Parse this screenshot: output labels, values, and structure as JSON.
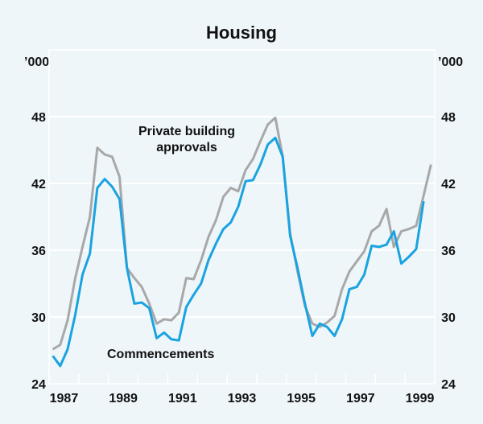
{
  "chart_data": {
    "type": "line",
    "title": "Housing",
    "ylabel_left": "’000",
    "ylabel_right": "’000",
    "ylim": [
      24,
      54
    ],
    "yticks": [
      24,
      30,
      36,
      42,
      48
    ],
    "xlim": [
      1987,
      2000
    ],
    "xticks": [
      "1987",
      "1989",
      "1991",
      "1993",
      "1995",
      "1997",
      "1999"
    ],
    "x_frequency": "quarterly",
    "x_start": "1987 Q1",
    "grid": true,
    "colors": {
      "background": "#eef6fa",
      "grid": "#ffffff",
      "approvals": "#a8a8a8",
      "commencements": "#1aa3e0"
    },
    "series": [
      {
        "name": "Private building approvals",
        "values": [
          27.1,
          27.5,
          29.7,
          33.4,
          36.3,
          39.0,
          45.2,
          44.6,
          44.4,
          42.6,
          34.4,
          33.5,
          32.7,
          31.2,
          29.4,
          29.8,
          29.7,
          30.4,
          33.5,
          33.4,
          35.1,
          37.2,
          38.7,
          40.8,
          41.6,
          41.3,
          43.2,
          44.2,
          45.8,
          47.3,
          47.9,
          44.4,
          37.5,
          34.1,
          31.0,
          29.4,
          29.1,
          29.5,
          30.1,
          32.5,
          34.1,
          35.0,
          35.9,
          37.7,
          38.2,
          39.7,
          36.3,
          37.7,
          37.9,
          38.2,
          40.9,
          43.7
        ]
      },
      {
        "name": "Commencements",
        "values": [
          26.5,
          25.6,
          27.1,
          30.1,
          33.8,
          35.7,
          41.6,
          42.4,
          41.7,
          40.6,
          34.4,
          31.2,
          31.3,
          30.8,
          28.1,
          28.6,
          28.0,
          27.9,
          30.9,
          32.0,
          33.0,
          35.1,
          36.6,
          37.9,
          38.5,
          39.9,
          42.2,
          42.3,
          43.7,
          45.5,
          46.1,
          44.4,
          37.3,
          34.4,
          31.2,
          28.3,
          29.4,
          29.1,
          28.3,
          29.8,
          32.5,
          32.7,
          33.8,
          36.4,
          36.3,
          36.5,
          37.7,
          34.8,
          35.4,
          36.1,
          40.4
        ]
      }
    ]
  }
}
